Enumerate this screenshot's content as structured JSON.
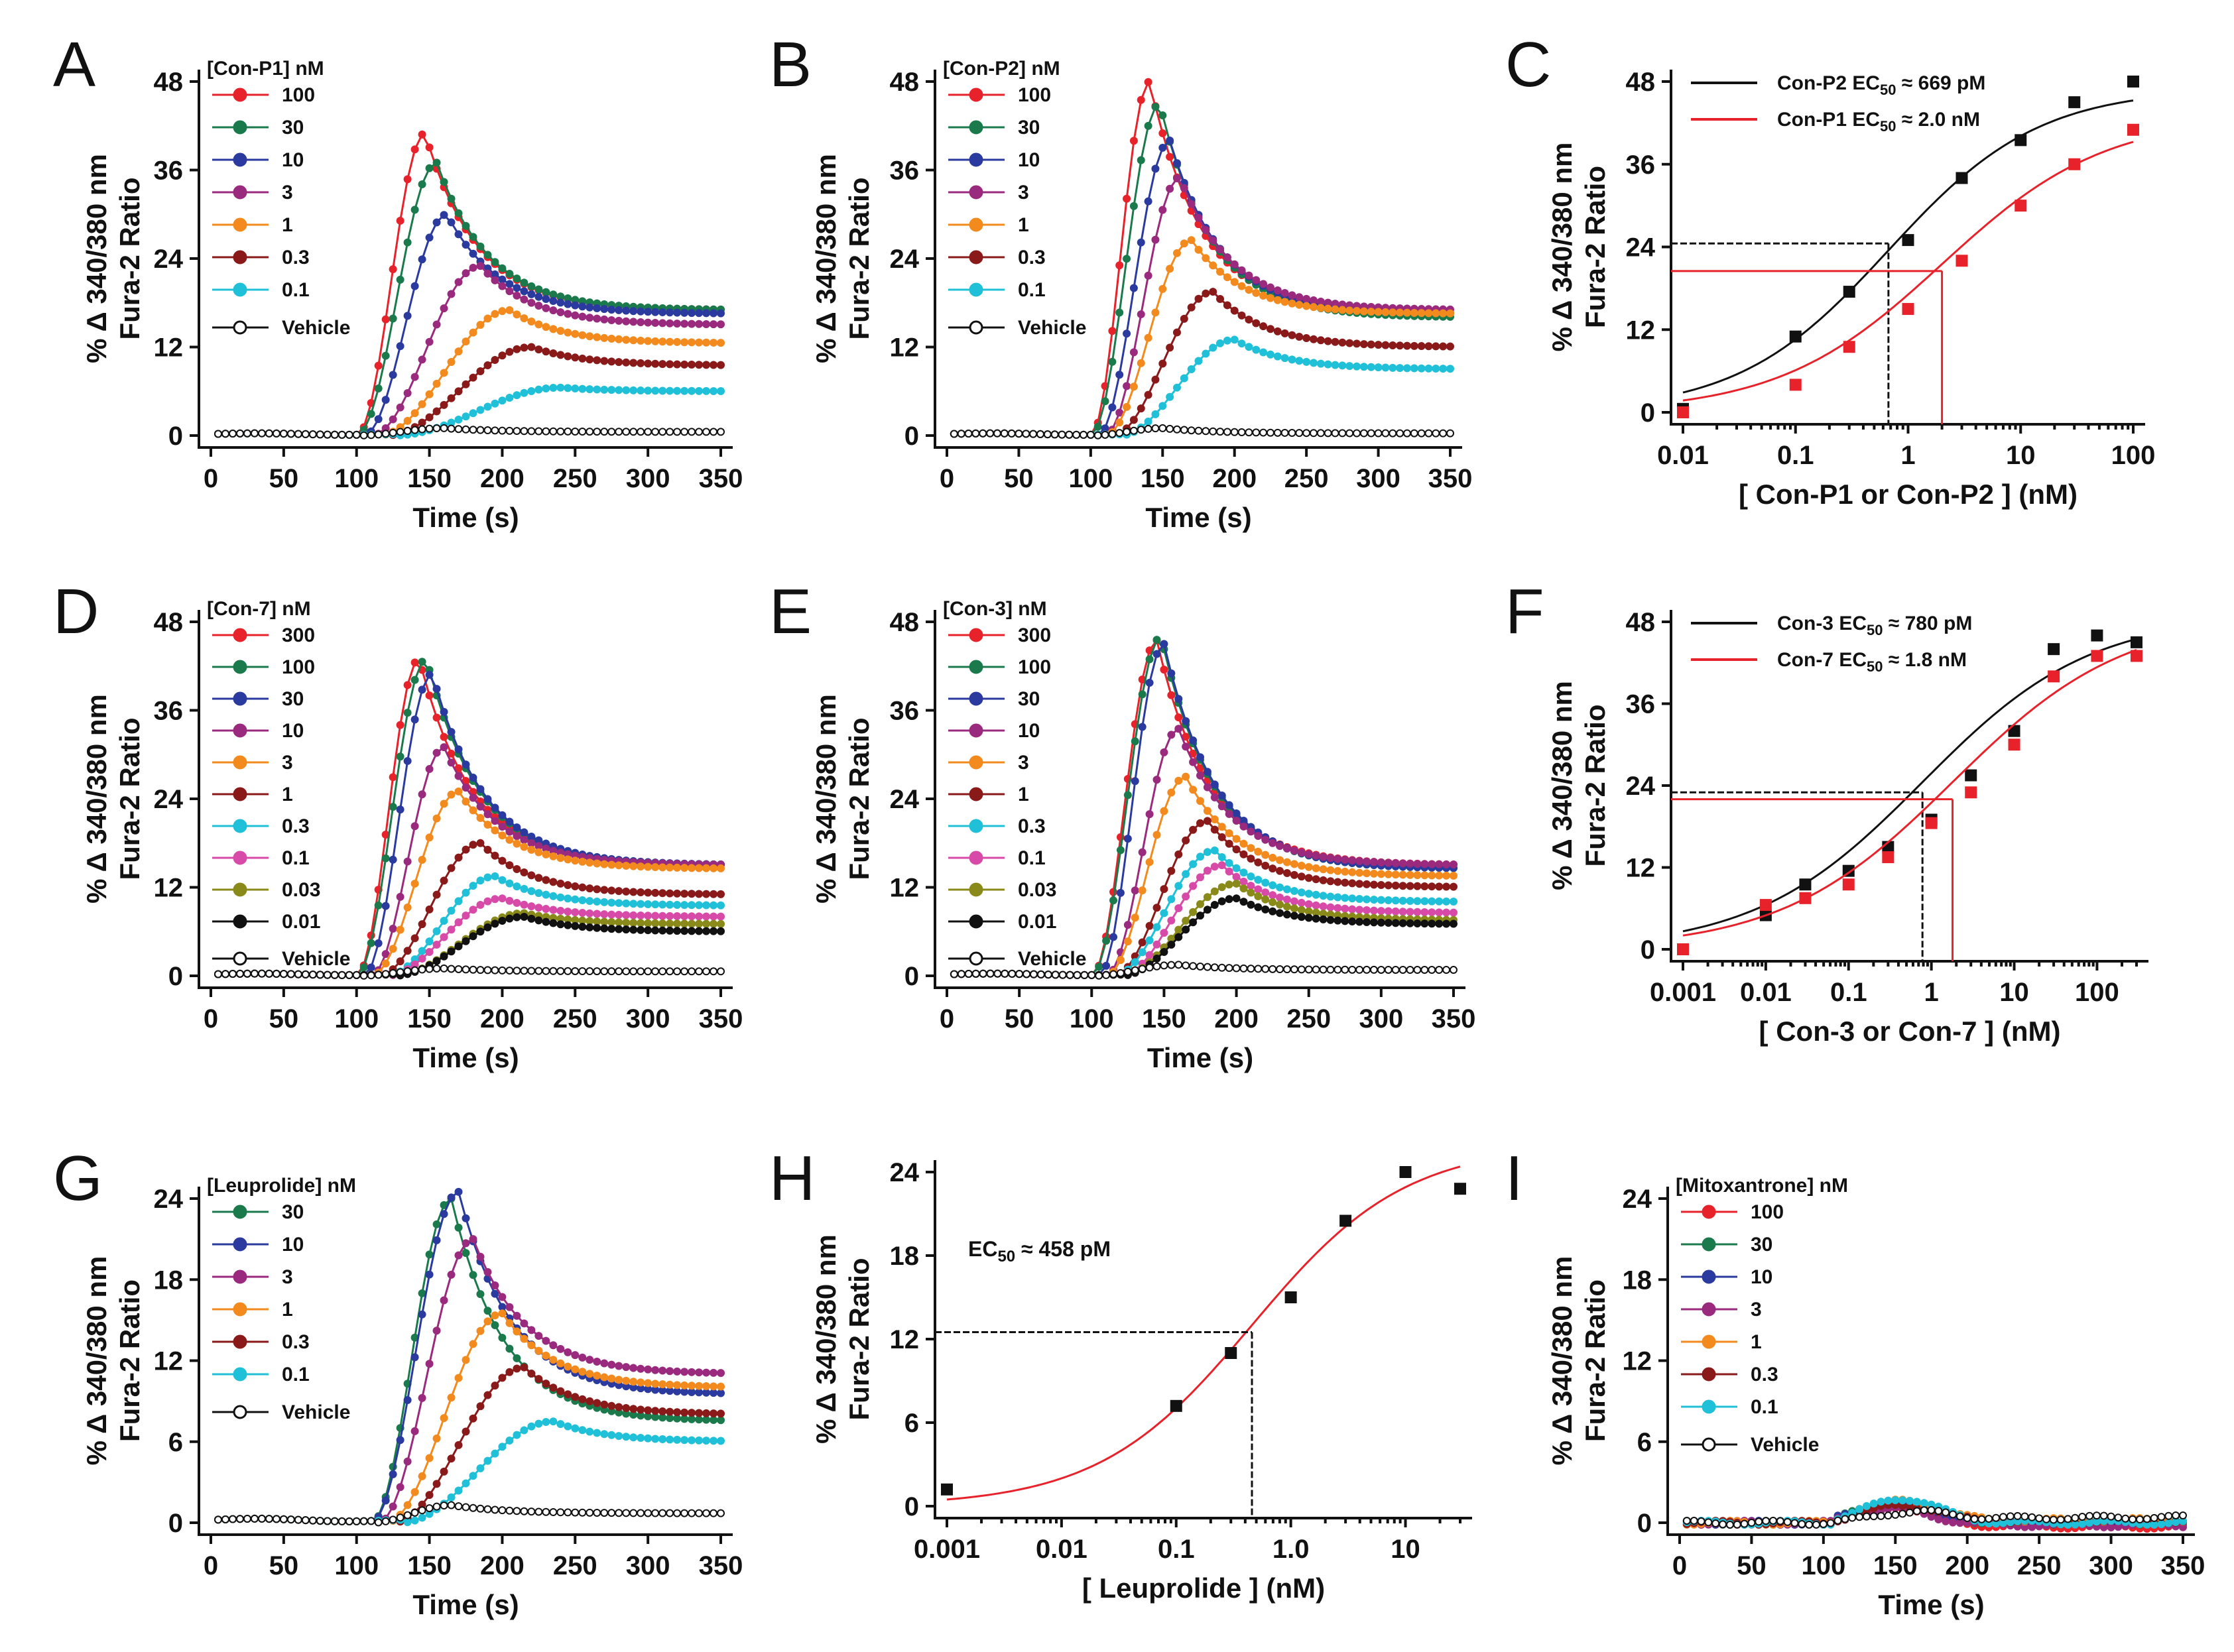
{
  "figure": {
    "y_axis_title_line1": "% Δ 340/380 nm",
    "y_axis_title_line2": "Fura-2 Ratio"
  },
  "chart_data": [
    {
      "panel": "A",
      "type": "line",
      "xlabel": "Time (s)",
      "xlim": [
        0,
        350
      ],
      "xticks": [
        0,
        50,
        100,
        150,
        200,
        250,
        300,
        350
      ],
      "ylim": [
        0,
        48
      ],
      "yticks": [
        0,
        12,
        24,
        36,
        48
      ],
      "legend_title": "[Con-P1] nM",
      "series": [
        {
          "name": "100",
          "color": "#e8222a",
          "onset": 100,
          "peak_t": 147,
          "peak": 41,
          "plateau": 17
        },
        {
          "name": "30",
          "color": "#1a7a4c",
          "onset": 100,
          "peak_t": 155,
          "peak": 37,
          "plateau": 17
        },
        {
          "name": "10",
          "color": "#2a3a9e",
          "onset": 105,
          "peak_t": 162,
          "peak": 30,
          "plateau": 16.5
        },
        {
          "name": "3",
          "color": "#9a2a7e",
          "onset": 110,
          "peak_t": 185,
          "peak": 23,
          "plateau": 15
        },
        {
          "name": "1",
          "color": "#f28a1e",
          "onset": 115,
          "peak_t": 205,
          "peak": 17,
          "plateau": 12.5
        },
        {
          "name": "0.3",
          "color": "#8a1a1a",
          "onset": 120,
          "peak_t": 220,
          "peak": 12,
          "plateau": 9.5
        },
        {
          "name": "0.1",
          "color": "#20c0d8",
          "onset": 125,
          "peak_t": 240,
          "peak": 6.5,
          "plateau": 6
        },
        {
          "name": "Vehicle",
          "color": "#111111",
          "open": true,
          "onset": 100,
          "peak_t": 160,
          "peak": 1,
          "plateau": 0.5
        }
      ]
    },
    {
      "panel": "B",
      "type": "line",
      "xlabel": "Time (s)",
      "xlim": [
        0,
        350
      ],
      "xticks": [
        0,
        50,
        100,
        150,
        200,
        250,
        300,
        350
      ],
      "ylim": [
        0,
        48
      ],
      "yticks": [
        0,
        12,
        24,
        36,
        48
      ],
      "legend_title": "[Con-P2] nM",
      "series": [
        {
          "name": "100",
          "color": "#e8222a",
          "onset": 100,
          "peak_t": 141,
          "peak": 48,
          "plateau": 16.5
        },
        {
          "name": "30",
          "color": "#1a7a4c",
          "onset": 100,
          "peak_t": 148,
          "peak": 45,
          "plateau": 16
        },
        {
          "name": "10",
          "color": "#2a3a9e",
          "onset": 105,
          "peak_t": 155,
          "peak": 40,
          "plateau": 16.5
        },
        {
          "name": "3",
          "color": "#9a2a7e",
          "onset": 110,
          "peak_t": 162,
          "peak": 35,
          "plateau": 17
        },
        {
          "name": "1",
          "color": "#f28a1e",
          "onset": 110,
          "peak_t": 170,
          "peak": 26.5,
          "plateau": 16.5
        },
        {
          "name": "0.3",
          "color": "#8a1a1a",
          "onset": 115,
          "peak_t": 185,
          "peak": 19.5,
          "plateau": 12
        },
        {
          "name": "0.1",
          "color": "#20c0d8",
          "onset": 120,
          "peak_t": 200,
          "peak": 13,
          "plateau": 9
        },
        {
          "name": "Vehicle",
          "color": "#111111",
          "open": true,
          "onset": 100,
          "peak_t": 150,
          "peak": 1,
          "plateau": 0.3
        }
      ]
    },
    {
      "panel": "C",
      "type": "scatter",
      "xscale": "log",
      "xlabel": "[ Con-P1 or Con-P2 ] (nM)",
      "xlim": [
        0.01,
        100
      ],
      "xticks": [
        0.01,
        0.1,
        1,
        10,
        100
      ],
      "xtick_labels": [
        "0.01",
        "0.1",
        "1",
        "10",
        "100"
      ],
      "ylim": [
        0,
        48
      ],
      "yticks": [
        0,
        12,
        24,
        36,
        48
      ],
      "series": [
        {
          "name": "Con-P2",
          "label_prefix": "Con-P2  EC",
          "label_suffix": " ≈ 669 pM",
          "color": "#111111",
          "x": [
            0.01,
            0.1,
            0.3,
            1,
            3,
            10,
            30,
            100
          ],
          "y": [
            0.5,
            11,
            17.5,
            25,
            34,
            39.5,
            45,
            48
          ],
          "fit": {
            "bottom": 0,
            "top": 47,
            "ec50": 0.669,
            "hill": 0.65
          },
          "half_y": 24.5
        },
        {
          "name": "Con-P1",
          "label_prefix": "Con-P1  EC",
          "label_suffix": " ≈ 2.0 nM",
          "color": "#e8222a",
          "x": [
            0.01,
            0.1,
            0.3,
            1,
            3,
            10,
            30,
            100
          ],
          "y": [
            0,
            4,
            9.5,
            15,
            22,
            30,
            36,
            41
          ],
          "fit": {
            "bottom": 0,
            "top": 43,
            "ec50": 2.0,
            "hill": 0.6
          },
          "half_y": 20.5
        }
      ]
    },
    {
      "panel": "D",
      "type": "line",
      "xlabel": "Time (s)",
      "xlim": [
        0,
        350
      ],
      "xticks": [
        0,
        50,
        100,
        150,
        200,
        250,
        300,
        350
      ],
      "ylim": [
        0,
        48
      ],
      "yticks": [
        0,
        12,
        24,
        36,
        48
      ],
      "legend_title": "[Con-7] nM",
      "series": [
        {
          "name": "300",
          "color": "#e8222a",
          "onset": 100,
          "peak_t": 143,
          "peak": 43,
          "plateau": 15
        },
        {
          "name": "100",
          "color": "#1a7a4c",
          "onset": 100,
          "peak_t": 148,
          "peak": 43,
          "plateau": 15
        },
        {
          "name": "30",
          "color": "#2a3a9e",
          "onset": 105,
          "peak_t": 152,
          "peak": 41,
          "plateau": 15
        },
        {
          "name": "10",
          "color": "#9a2a7e",
          "onset": 110,
          "peak_t": 160,
          "peak": 31,
          "plateau": 15
        },
        {
          "name": "3",
          "color": "#f28a1e",
          "onset": 110,
          "peak_t": 170,
          "peak": 25,
          "plateau": 14.5
        },
        {
          "name": "1",
          "color": "#8a1a1a",
          "onset": 115,
          "peak_t": 185,
          "peak": 18,
          "plateau": 11
        },
        {
          "name": "0.3",
          "color": "#20c0d8",
          "onset": 120,
          "peak_t": 195,
          "peak": 13.5,
          "plateau": 9.5
        },
        {
          "name": "0.1",
          "color": "#d84aa8",
          "onset": 120,
          "peak_t": 200,
          "peak": 10.5,
          "plateau": 8
        },
        {
          "name": "0.03",
          "color": "#8a8a1a",
          "onset": 125,
          "peak_t": 215,
          "peak": 8.5,
          "plateau": 7
        },
        {
          "name": "0.01",
          "color": "#111111",
          "onset": 125,
          "peak_t": 215,
          "peak": 8,
          "plateau": 6
        },
        {
          "name": "Vehicle",
          "color": "#111111",
          "open": true,
          "onset": 100,
          "peak_t": 160,
          "peak": 1,
          "plateau": 0.6
        }
      ]
    },
    {
      "panel": "E",
      "type": "line",
      "xlabel": "Time (s)",
      "xlim": [
        0,
        350
      ],
      "xticks": [
        0,
        50,
        100,
        150,
        200,
        250,
        300,
        350
      ],
      "ylim": [
        0,
        48
      ],
      "yticks": [
        0,
        12,
        24,
        36,
        48
      ],
      "legend_title": "[Con-3] nM",
      "series": [
        {
          "name": "300",
          "color": "#e8222a",
          "onset": 100,
          "peak_t": 145,
          "peak": 45.5,
          "plateau": 15
        },
        {
          "name": "100",
          "color": "#1a7a4c",
          "onset": 100,
          "peak_t": 148,
          "peak": 46,
          "plateau": 14.5
        },
        {
          "name": "30",
          "color": "#2a3a9e",
          "onset": 105,
          "peak_t": 150,
          "peak": 45,
          "plateau": 14.5
        },
        {
          "name": "10",
          "color": "#9a2a7e",
          "onset": 110,
          "peak_t": 160,
          "peak": 33.5,
          "plateau": 15
        },
        {
          "name": "3",
          "color": "#f28a1e",
          "onset": 110,
          "peak_t": 165,
          "peak": 27,
          "plateau": 13.5
        },
        {
          "name": "1",
          "color": "#8a1a1a",
          "onset": 115,
          "peak_t": 180,
          "peak": 21,
          "plateau": 12
        },
        {
          "name": "0.3",
          "color": "#20c0d8",
          "onset": 115,
          "peak_t": 185,
          "peak": 17,
          "plateau": 10
        },
        {
          "name": "0.1",
          "color": "#d84aa8",
          "onset": 120,
          "peak_t": 190,
          "peak": 15,
          "plateau": 8.5
        },
        {
          "name": "0.03",
          "color": "#8a8a1a",
          "onset": 120,
          "peak_t": 200,
          "peak": 12.5,
          "plateau": 7.5
        },
        {
          "name": "0.01",
          "color": "#111111",
          "onset": 120,
          "peak_t": 200,
          "peak": 10.5,
          "plateau": 7
        },
        {
          "name": "Vehicle",
          "color": "#111111",
          "open": true,
          "onset": 100,
          "peak_t": 160,
          "peak": 1.5,
          "plateau": 0.8
        }
      ]
    },
    {
      "panel": "F",
      "type": "scatter",
      "xscale": "log",
      "xlabel": "[ Con-3 or Con-7 ] (nM)",
      "xlim": [
        0.001,
        300
      ],
      "xticks": [
        0.001,
        0.01,
        0.1,
        1,
        10,
        100
      ],
      "xtick_labels": [
        "0.001",
        "0.01",
        "0.1",
        "1",
        "10",
        "100"
      ],
      "ylim": [
        0,
        48
      ],
      "yticks": [
        0,
        12,
        24,
        36,
        48
      ],
      "series": [
        {
          "name": "Con-3",
          "label_prefix": "Con-3  EC",
          "label_suffix": " ≈ 780 pM",
          "color": "#111111",
          "x": [
            0.001,
            0.01,
            0.03,
            0.1,
            0.3,
            1,
            3,
            10,
            30,
            100,
            300
          ],
          "y": [
            0,
            5,
            9.5,
            11.5,
            15,
            19,
            25.5,
            32,
            44,
            46,
            45
          ],
          "fit": {
            "bottom": 0,
            "top": 49,
            "ec50": 0.78,
            "hill": 0.43
          },
          "half_y": 23
        },
        {
          "name": "Con-7",
          "label_prefix": "Con-7  EC",
          "label_suffix": " ≈ 1.8 nM",
          "color": "#e8222a",
          "x": [
            0.001,
            0.01,
            0.03,
            0.1,
            0.3,
            1,
            3,
            10,
            30,
            100,
            300
          ],
          "y": [
            0,
            6.5,
            7.5,
            9.5,
            13.5,
            18.5,
            23,
            30,
            40,
            43,
            43
          ],
          "fit": {
            "bottom": 0,
            "top": 49,
            "ec50": 1.8,
            "hill": 0.42
          },
          "half_y": 22
        }
      ]
    },
    {
      "panel": "G",
      "type": "line",
      "xlabel": "Time (s)",
      "xlim": [
        0,
        350
      ],
      "xticks": [
        0,
        50,
        100,
        150,
        200,
        250,
        300,
        350
      ],
      "ylim": [
        0,
        24
      ],
      "yticks": [
        0,
        6,
        12,
        18,
        24
      ],
      "legend_title": "[Leuprolide] nM",
      "series": [
        {
          "name": "30",
          "color": "#1a7a4c",
          "onset": 110,
          "peak_t": 165,
          "peak": 24,
          "plateau": 7.5
        },
        {
          "name": "10",
          "color": "#2a3a9e",
          "onset": 110,
          "peak_t": 170,
          "peak": 24.5,
          "plateau": 9.5
        },
        {
          "name": "3",
          "color": "#9a2a7e",
          "onset": 115,
          "peak_t": 180,
          "peak": 21,
          "plateau": 11
        },
        {
          "name": "1",
          "color": "#f28a1e",
          "onset": 120,
          "peak_t": 200,
          "peak": 15.5,
          "plateau": 10
        },
        {
          "name": "0.3",
          "color": "#8a1a1a",
          "onset": 125,
          "peak_t": 215,
          "peak": 11.5,
          "plateau": 8
        },
        {
          "name": "0.1",
          "color": "#20c0d8",
          "onset": 130,
          "peak_t": 235,
          "peak": 7.5,
          "plateau": 6
        },
        {
          "name": "Vehicle",
          "color": "#111111",
          "open": true,
          "onset": 110,
          "peak_t": 165,
          "peak": 1.3,
          "plateau": 0.7
        }
      ]
    },
    {
      "panel": "H",
      "type": "scatter",
      "xscale": "log",
      "xlabel": "[ Leuprolide ] (nM)",
      "xlim": [
        0.001,
        30
      ],
      "xticks": [
        0.001,
        0.01,
        0.1,
        1,
        10
      ],
      "xtick_labels": [
        "0.001",
        "0.01",
        "0.1",
        "1.0",
        "10"
      ],
      "ylim": [
        0,
        24
      ],
      "yticks": [
        0,
        6,
        12,
        18,
        24
      ],
      "annotation_prefix": "EC",
      "annotation_suffix": " ≈ 458 pM",
      "series": [
        {
          "name": "Leuprolide",
          "color": "#111111",
          "fit_color": "#e8222a",
          "x": [
            0.001,
            0.1,
            0.3,
            1,
            3,
            10,
            30
          ],
          "y": [
            1.2,
            7.2,
            11,
            15,
            20.5,
            24,
            22.8
          ],
          "fit": {
            "bottom": 0,
            "top": 26,
            "ec50": 0.458,
            "hill": 0.65
          },
          "half_y": 12.5
        }
      ]
    },
    {
      "panel": "I",
      "type": "line",
      "xlabel": "Time (s)",
      "xlim": [
        0,
        350
      ],
      "xticks": [
        0,
        50,
        100,
        150,
        200,
        250,
        300,
        350
      ],
      "ylim": [
        0,
        24
      ],
      "yticks": [
        0,
        6,
        12,
        18,
        24
      ],
      "legend_title": "[Mitoxantrone] nM",
      "flat": true,
      "series": [
        {
          "name": "100",
          "color": "#e8222a",
          "onset": 110,
          "peak_t": 150,
          "peak": 1.2,
          "plateau": -0.3
        },
        {
          "name": "30",
          "color": "#1a7a4c",
          "onset": 110,
          "peak_t": 150,
          "peak": 1.5,
          "plateau": 0
        },
        {
          "name": "10",
          "color": "#2a3a9e",
          "onset": 110,
          "peak_t": 150,
          "peak": 1.4,
          "plateau": 0
        },
        {
          "name": "3",
          "color": "#9a2a7e",
          "onset": 110,
          "peak_t": 150,
          "peak": 1.0,
          "plateau": -0.2
        },
        {
          "name": "1",
          "color": "#f28a1e",
          "onset": 110,
          "peak_t": 155,
          "peak": 1.6,
          "plateau": 0.2
        },
        {
          "name": "0.3",
          "color": "#8a1a1a",
          "onset": 110,
          "peak_t": 155,
          "peak": 1.3,
          "plateau": 0.1
        },
        {
          "name": "0.1",
          "color": "#20c0d8",
          "onset": 110,
          "peak_t": 155,
          "peak": 1.8,
          "plateau": 0
        },
        {
          "name": "Vehicle",
          "color": "#111111",
          "open": true,
          "onset": 110,
          "peak_t": 160,
          "peak": 0.8,
          "plateau": 0.4
        }
      ]
    }
  ]
}
